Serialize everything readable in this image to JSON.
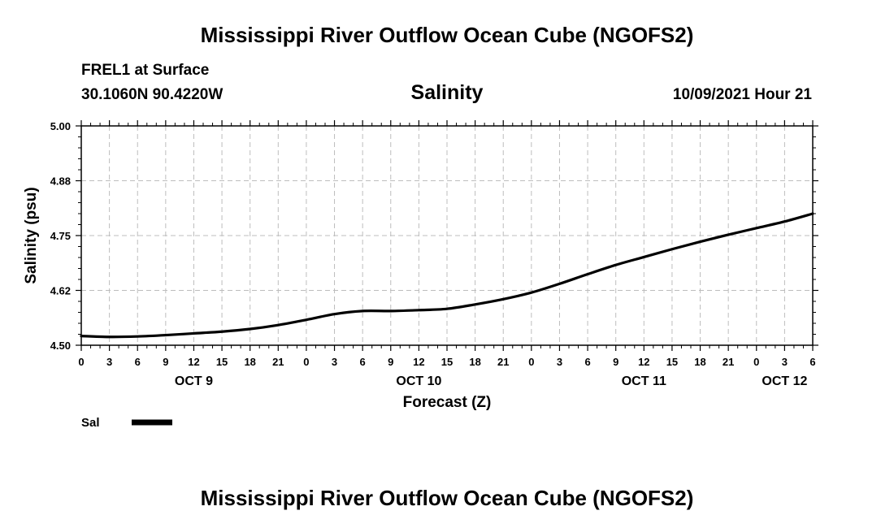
{
  "header": {
    "title": "Mississippi River Outflow Ocean Cube (NGOFS2)",
    "station": "FREL1 at Surface",
    "coordinates": "30.1060N  90.4220W",
    "chart_title": "Salinity",
    "run_time": "10/09/2021 Hour 21"
  },
  "footer": {
    "title": "Mississippi River Outflow Ocean Cube (NGOFS2)"
  },
  "chart_data": {
    "type": "line",
    "title": "Salinity",
    "xlabel": "Forecast (Z)",
    "ylabel": "Salinity (psu)",
    "ylim": [
      4.5,
      5.0
    ],
    "xlim_hours": [
      0,
      78
    ],
    "y_ticks": [
      "4.50",
      "4.62",
      "4.75",
      "4.88",
      "5.00"
    ],
    "x_ticks": [
      "0",
      "3",
      "6",
      "9",
      "12",
      "15",
      "18",
      "21",
      "0",
      "3",
      "6",
      "9",
      "12",
      "15",
      "18",
      "21",
      "0",
      "3",
      "6",
      "9",
      "12",
      "15",
      "18",
      "21",
      "0",
      "3",
      "6"
    ],
    "date_labels": [
      {
        "label": "OCT 9",
        "hour": 12
      },
      {
        "label": "OCT 10",
        "hour": 36
      },
      {
        "label": "OCT 11",
        "hour": 60
      },
      {
        "label": "OCT 12",
        "hour": 75
      }
    ],
    "grid": true,
    "legend": "bottom-left",
    "series": [
      {
        "name": "Sal",
        "color": "#000000",
        "x": [
          0,
          3,
          6,
          9,
          12,
          15,
          18,
          21,
          24,
          27,
          30,
          33,
          36,
          39,
          42,
          45,
          48,
          51,
          54,
          57,
          60,
          63,
          66,
          69,
          72,
          75,
          78
        ],
        "y": [
          4.521,
          4.519,
          4.52,
          4.523,
          4.527,
          4.531,
          4.537,
          4.546,
          4.558,
          4.571,
          4.578,
          4.578,
          4.58,
          4.583,
          4.593,
          4.605,
          4.62,
          4.64,
          4.662,
          4.683,
          4.701,
          4.719,
          4.736,
          4.752,
          4.767,
          4.782,
          4.8
        ]
      }
    ]
  }
}
